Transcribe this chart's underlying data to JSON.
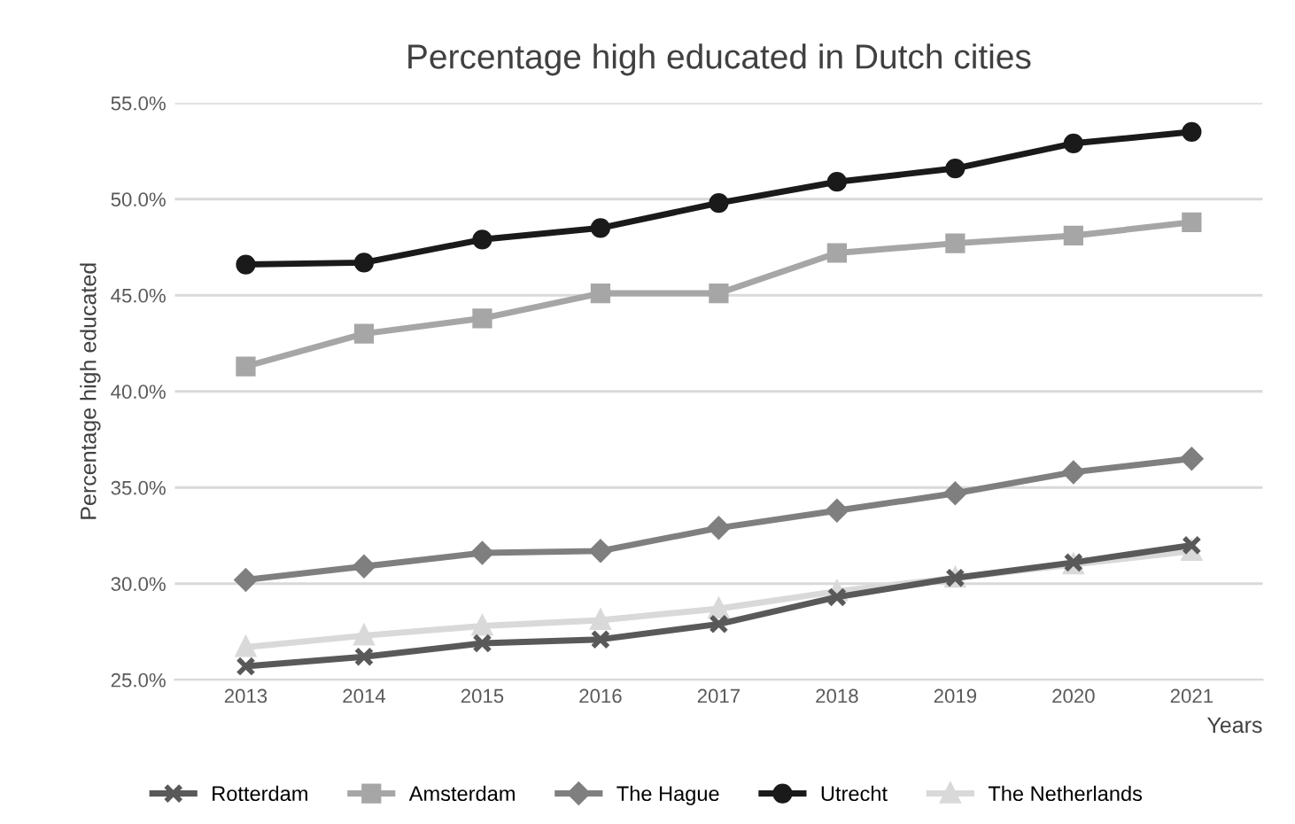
{
  "chart_data": {
    "type": "line",
    "title": "Percentage high educated in Dutch cities",
    "xlabel": "Years",
    "ylabel": "Percentage high educated",
    "categories": [
      "2013",
      "2014",
      "2015",
      "2016",
      "2017",
      "2018",
      "2019",
      "2020",
      "2021"
    ],
    "series": [
      {
        "name": "Rotterdam",
        "color": "#595959",
        "marker": "cross",
        "values": [
          25.7,
          26.2,
          26.9,
          27.1,
          27.9,
          29.3,
          30.3,
          31.1,
          32.0
        ]
      },
      {
        "name": "Amsterdam",
        "color": "#a6a6a6",
        "marker": "square",
        "values": [
          41.3,
          43.0,
          43.8,
          45.1,
          45.1,
          47.2,
          47.7,
          48.1,
          48.8
        ]
      },
      {
        "name": "The Hague",
        "color": "#7f7f7f",
        "marker": "diamond",
        "values": [
          30.2,
          30.9,
          31.6,
          31.7,
          32.9,
          33.8,
          34.7,
          35.8,
          36.5
        ]
      },
      {
        "name": "Utrecht",
        "color": "#1a1a1a",
        "marker": "circle",
        "values": [
          46.6,
          46.7,
          47.9,
          48.5,
          49.8,
          50.9,
          51.6,
          52.9,
          53.5
        ]
      },
      {
        "name": "The Netherlands",
        "color": "#d9d9d9",
        "marker": "triangle",
        "values": [
          26.7,
          27.3,
          27.8,
          28.1,
          28.7,
          29.6,
          30.3,
          31.0,
          31.7
        ]
      }
    ],
    "ylim": [
      25,
      55
    ],
    "yticks": [
      {
        "value": 25,
        "label": "25.0%"
      },
      {
        "value": 30,
        "label": "30.0%"
      },
      {
        "value": 35,
        "label": "35.0%"
      },
      {
        "value": 40,
        "label": "40.0%"
      },
      {
        "value": 45,
        "label": "45.0%"
      },
      {
        "value": 50,
        "label": "50.0%"
      },
      {
        "value": 55,
        "label": "55.0%"
      }
    ],
    "grid": "y",
    "legend": "bottom",
    "line_style": "solid"
  }
}
